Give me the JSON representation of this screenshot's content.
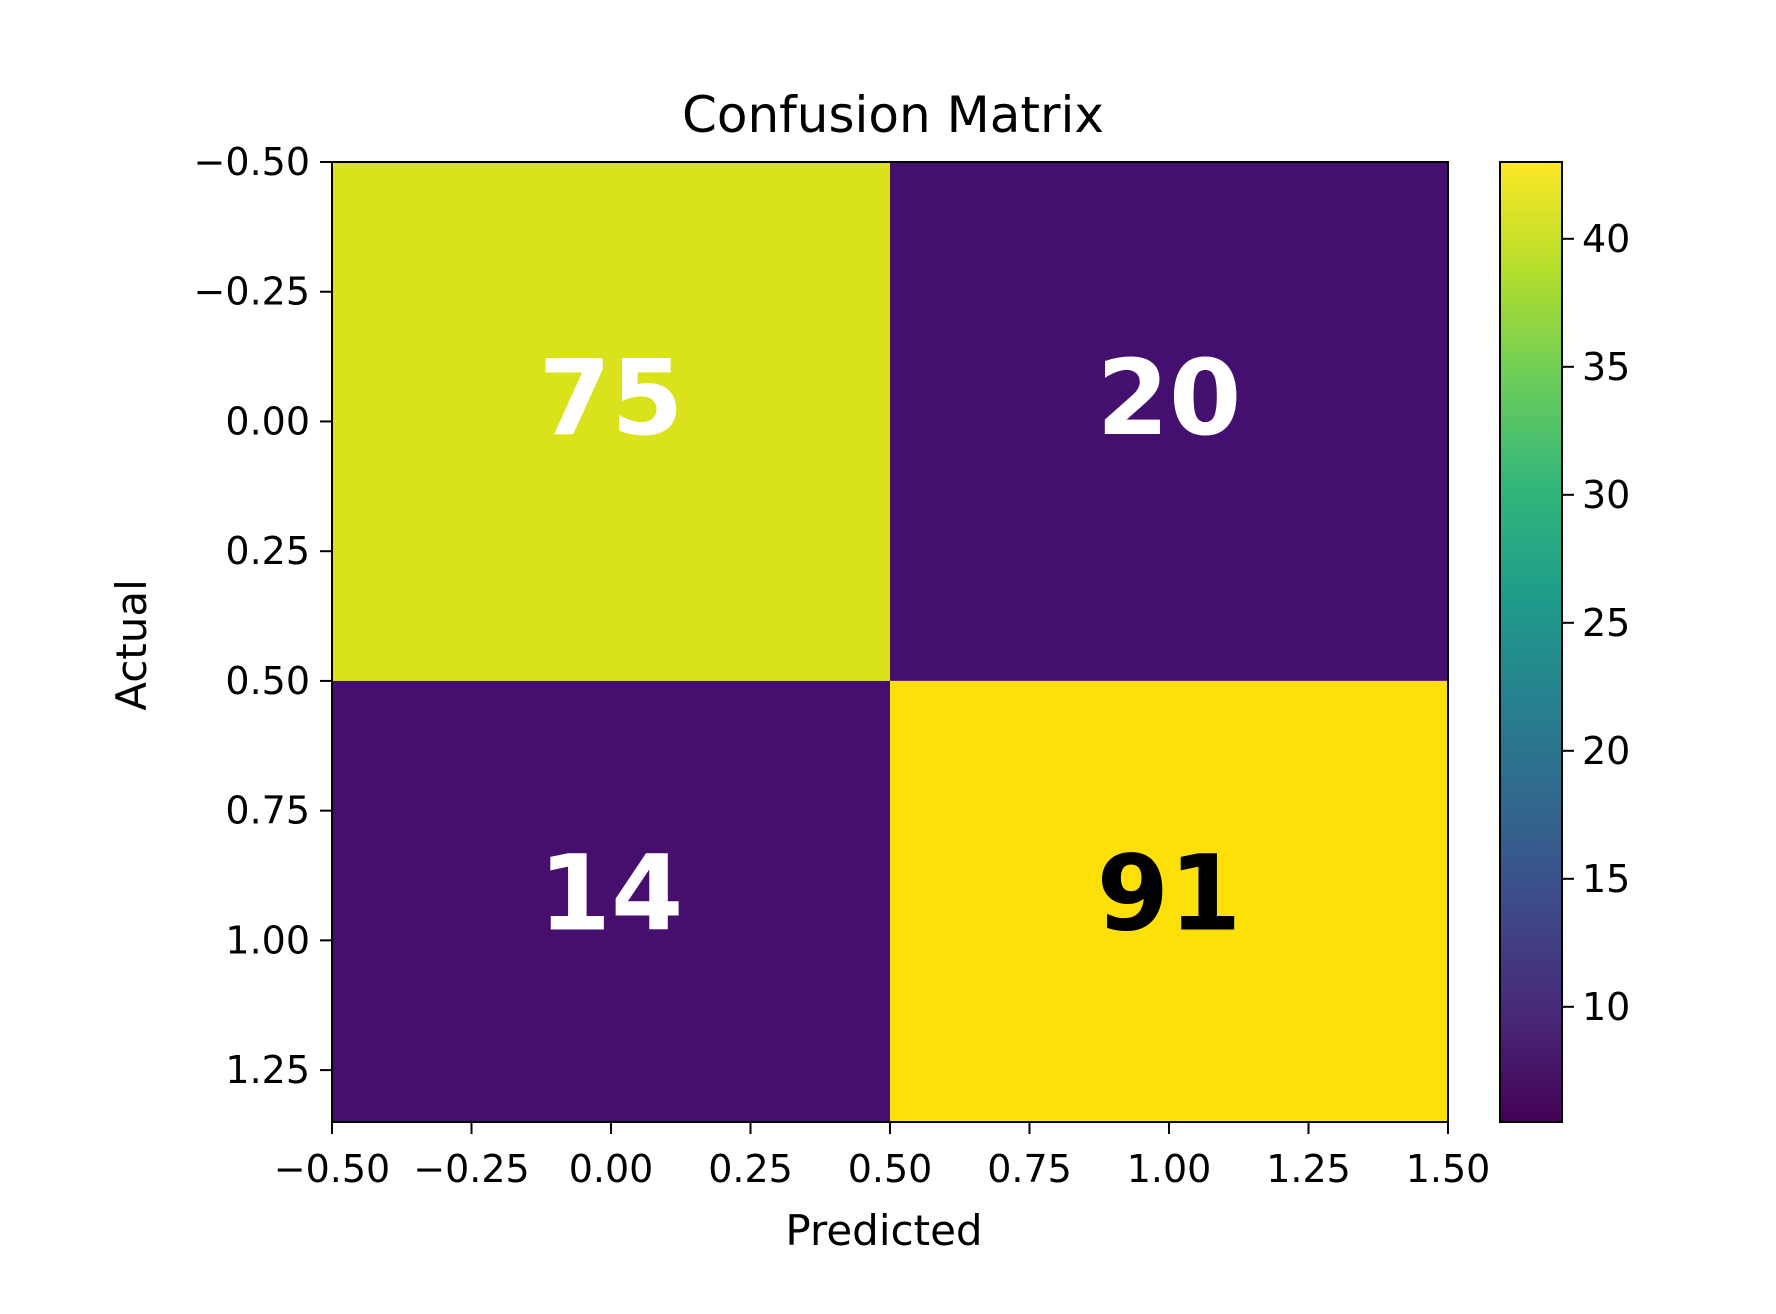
{
  "chart_data": {
    "type": "heatmap",
    "title": "Confusion Matrix",
    "xlabel": "Predicted",
    "ylabel": "Actual",
    "matrix": [
      [
        75,
        20
      ],
      [
        14,
        91
      ]
    ],
    "cell_colors": [
      [
        "#d9e21b",
        "#440f6e"
      ],
      [
        "#460f6e",
        "#fde007"
      ]
    ],
    "cell_text_colors": [
      [
        "#ffffff",
        "#ffffff"
      ],
      [
        "#ffffff",
        "#000000"
      ]
    ],
    "xlim": [
      -0.5,
      1.5
    ],
    "ylim": [
      1.35,
      -0.5
    ],
    "xticks": [
      -0.5,
      -0.25,
      0.0,
      0.25,
      0.5,
      0.75,
      1.0,
      1.25,
      1.5
    ],
    "xtick_labels": [
      "−0.50",
      "−0.25",
      "0.00",
      "0.25",
      "0.50",
      "0.75",
      "1.00",
      "1.25",
      "1.50"
    ],
    "yticks": [
      -0.5,
      -0.25,
      0.0,
      0.25,
      0.5,
      0.75,
      1.0,
      1.25
    ],
    "ytick_labels": [
      "−0.50",
      "−0.25",
      "0.00",
      "0.25",
      "0.50",
      "0.75",
      "1.00",
      "1.25"
    ],
    "colorbar": {
      "colormap": "viridis",
      "range": [
        5.5,
        43
      ],
      "ticks": [
        10,
        15,
        20,
        25,
        30,
        35,
        40
      ],
      "tick_labels": [
        "10",
        "15",
        "20",
        "25",
        "30",
        "35",
        "40"
      ]
    },
    "grid": false
  }
}
